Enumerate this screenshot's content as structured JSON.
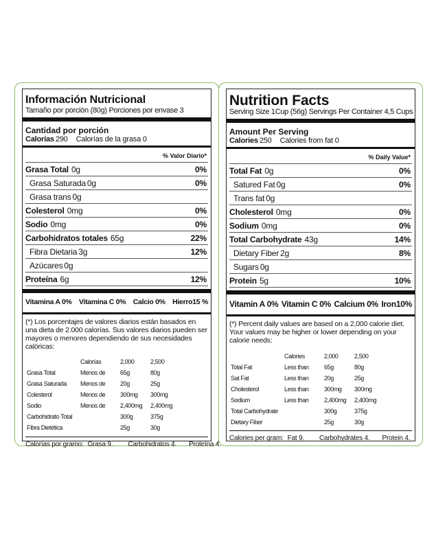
{
  "spanish": {
    "title": "Información Nutricional",
    "serving": "Tamaño por porción (80g)  Porciones por envase 3",
    "amount_header": "Cantidad por porción",
    "calories_label": "Calorías",
    "calories_value": "290",
    "calories_fat": "Calorías de la grasa 0",
    "dv_header": "% Valor Diario*",
    "nutrients": [
      {
        "name": "Grasa Total",
        "amount": "0g",
        "pct": "0%",
        "bold": true,
        "sub": false
      },
      {
        "name": "Grasa Saturada",
        "amount": "0g",
        "pct": "0%",
        "bold": false,
        "sub": true
      },
      {
        "name": "Grasa trans",
        "amount": "0g",
        "pct": "",
        "bold": false,
        "sub": true
      },
      {
        "name": "Colesterol",
        "amount": "0mg",
        "pct": "0%",
        "bold": true,
        "sub": false
      },
      {
        "name": "Sodio",
        "amount": "0mg",
        "pct": "0%",
        "bold": true,
        "sub": false
      },
      {
        "name": "Carbohidratos totales",
        "amount": "65g",
        "pct": "22%",
        "bold": true,
        "sub": false
      },
      {
        "name": "Fibra Dietaria",
        "amount": "3g",
        "pct": "12%",
        "bold": false,
        "sub": true
      },
      {
        "name": "Azúcares",
        "amount": "0g",
        "pct": "",
        "bold": false,
        "sub": true
      },
      {
        "name": "Proteína",
        "amount": "6g",
        "pct": "12%",
        "bold": true,
        "sub": false
      }
    ],
    "vitamins": [
      "Vitamina A 0%",
      "Vitamina C 0%",
      "Calcio 0%",
      "Hierro15 %"
    ],
    "footnote": "(*) Los porcentajes de valores diarios están basados en una dieta de 2.000 calorías. Sus valores diarios pueden ser mayores o menores dependiendo de sus necesidades calóricas:",
    "table_header": [
      "",
      "Calorías",
      "2,000",
      "2,500"
    ],
    "table_rows": [
      [
        "Grasa Total",
        "Menos de",
        "65g",
        "80g"
      ],
      [
        "Grasa Saturada",
        "Menos de",
        "20g",
        "25g"
      ],
      [
        "Colesterol",
        "Menos de",
        "300mg",
        "300mg"
      ],
      [
        "Sodio",
        "Menos de",
        "2,400mg",
        "2,400mg"
      ],
      [
        "Carbohidrato Total",
        "",
        "300g",
        "375g"
      ],
      [
        "Fibra Dietética",
        "",
        "25g",
        "30g"
      ]
    ],
    "calories_per_gram": [
      "Calorías por gramo:",
      "Grasa 9.",
      "Carbohidratos 4.",
      "Proteína 4."
    ]
  },
  "english": {
    "title": "Nutrition Facts",
    "serving": "Serving Size 1Cup (56g) Servings Per Container 4,5 Cups",
    "amount_header": "Amount Per Serving",
    "calories_label": "Calories",
    "calories_value": "250",
    "calories_fat": "Calories from fat 0",
    "dv_header": "% Daily Value*",
    "nutrients": [
      {
        "name": "Total Fat",
        "amount": "0g",
        "pct": "0%",
        "bold": true,
        "sub": false
      },
      {
        "name": "Satured Fat",
        "amount": "0g",
        "pct": "0%",
        "bold": false,
        "sub": true
      },
      {
        "name": "Trans fat",
        "amount": "0g",
        "pct": "",
        "bold": false,
        "sub": true
      },
      {
        "name": "Cholesterol",
        "amount": "0mg",
        "pct": "0%",
        "bold": true,
        "sub": false
      },
      {
        "name": "Sodium",
        "amount": "0mg",
        "pct": "0%",
        "bold": true,
        "sub": false
      },
      {
        "name": "Total Carbohydrate",
        "amount": "43g",
        "pct": "14%",
        "bold": true,
        "sub": false
      },
      {
        "name": "Dietary Fiber",
        "amount": "2g",
        "pct": "8%",
        "bold": false,
        "sub": true
      },
      {
        "name": "Sugars",
        "amount": "0g",
        "pct": "",
        "bold": false,
        "sub": true
      },
      {
        "name": "Protein",
        "amount": "5g",
        "pct": "10%",
        "bold": true,
        "sub": false
      }
    ],
    "vitamins": [
      "Vitamin A 0%",
      "Vitamin C 0%",
      "Calcium 0%",
      "Iron10%"
    ],
    "footnote": "(*) Percent daily values are based on a 2,000 calorie diet. Your values may be higher or lower depending on your calorie needs:",
    "table_header": [
      "",
      "Calories",
      "2,000",
      "2,500"
    ],
    "table_rows": [
      [
        "Total Fat",
        "Less than",
        "65g",
        "80g"
      ],
      [
        "Sat Fat",
        "Less than",
        "20g",
        "25g"
      ],
      [
        "Cholesterol",
        "Less than",
        "300mg",
        "300mg"
      ],
      [
        "Sodium",
        "Less than",
        "2,400mg",
        "2,400mg"
      ],
      [
        "Total Carbohydrate",
        "",
        "300g",
        "375g"
      ],
      [
        "Dietary Fiber",
        "",
        "25g",
        "30g"
      ]
    ],
    "calories_per_gram": [
      "Calories per gram:",
      "Fat 9.",
      "Carbohydrates 4.",
      "Protein 4."
    ]
  }
}
